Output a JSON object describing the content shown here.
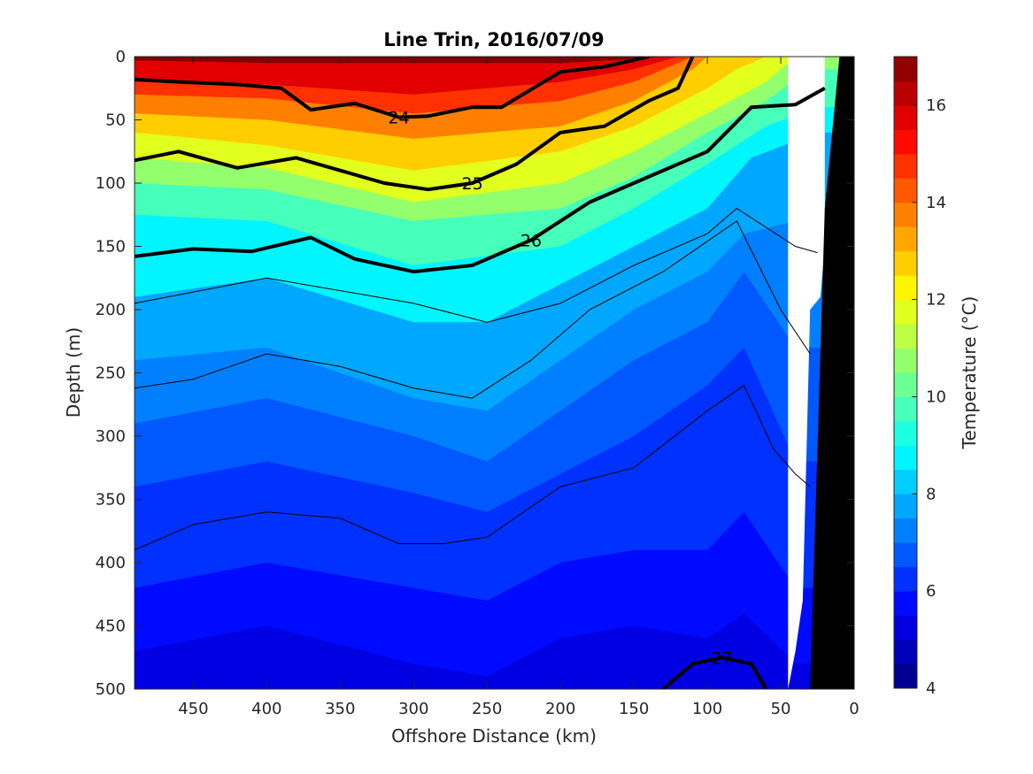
{
  "chart_data": {
    "type": "heatmap",
    "title": "Line Trin, 2016/07/09",
    "xlabel": "Offshore Distance (km)",
    "ylabel": "Depth (m)",
    "colorbar_label": "Temperature (°C)",
    "xlim": [
      490,
      0
    ],
    "ylim": [
      0,
      500
    ],
    "x_reversed": true,
    "y_reversed": true,
    "clim": [
      4,
      17
    ],
    "x_ticks": [
      "450",
      "400",
      "350",
      "300",
      "250",
      "200",
      "150",
      "100",
      "50",
      "0"
    ],
    "y_ticks": [
      "0",
      "50",
      "100",
      "150",
      "200",
      "250",
      "300",
      "350",
      "400",
      "450",
      "500"
    ],
    "colorbar_ticks": [
      "4",
      "6",
      "8",
      "10",
      "12",
      "14",
      "16"
    ],
    "colormap": "jet",
    "colors": {
      "contour": "#000000",
      "bathymetry": "#000000",
      "no_data": "#ffffff"
    },
    "temperature_isotherms": [
      {
        "t": 16,
        "x": [
          490,
          400,
          300,
          200,
          150,
          130
        ],
        "depth": [
          3,
          5,
          5,
          5,
          2,
          0
        ]
      },
      {
        "t": 15,
        "x": [
          490,
          400,
          300,
          200,
          150,
          120
        ],
        "depth": [
          20,
          22,
          30,
          20,
          10,
          0
        ]
      },
      {
        "t": 14,
        "x": [
          490,
          400,
          300,
          200,
          150,
          120,
          110
        ],
        "depth": [
          30,
          33,
          45,
          35,
          20,
          5,
          0
        ]
      },
      {
        "t": 13,
        "x": [
          490,
          400,
          300,
          200,
          150,
          110,
          100
        ],
        "depth": [
          45,
          50,
          65,
          55,
          35,
          10,
          0
        ]
      },
      {
        "t": 12,
        "x": [
          490,
          400,
          300,
          200,
          150,
          100,
          80,
          60
        ],
        "depth": [
          60,
          70,
          90,
          75,
          55,
          25,
          10,
          0
        ]
      },
      {
        "t": 11,
        "x": [
          490,
          400,
          300,
          200,
          150,
          100,
          60,
          40
        ],
        "depth": [
          80,
          88,
          115,
          100,
          75,
          45,
          20,
          0
        ]
      },
      {
        "t": 10,
        "x": [
          490,
          400,
          300,
          200,
          150,
          100,
          60,
          30
        ],
        "depth": [
          100,
          105,
          130,
          120,
          95,
          60,
          35,
          10
        ]
      },
      {
        "t": 9,
        "x": [
          490,
          400,
          300,
          200,
          150,
          100,
          60,
          25
        ],
        "depth": [
          125,
          130,
          165,
          150,
          120,
          85,
          55,
          40
        ]
      },
      {
        "t": 8,
        "x": [
          490,
          400,
          300,
          250,
          200,
          150,
          100,
          70,
          25
        ],
        "depth": [
          190,
          175,
          210,
          210,
          180,
          150,
          120,
          80,
          60
        ]
      },
      {
        "t": 7.5,
        "x": [
          490,
          400,
          300,
          250,
          200,
          150,
          100,
          75,
          40
        ],
        "depth": [
          240,
          230,
          270,
          280,
          240,
          200,
          170,
          140,
          130
        ]
      },
      {
        "t": 7,
        "x": [
          490,
          400,
          300,
          250,
          200,
          150,
          100,
          75,
          40
        ],
        "depth": [
          290,
          270,
          300,
          320,
          280,
          240,
          210,
          170,
          230
        ]
      },
      {
        "t": 6.5,
        "x": [
          490,
          400,
          300,
          250,
          200,
          150,
          100,
          75,
          40
        ],
        "depth": [
          340,
          320,
          345,
          360,
          330,
          300,
          260,
          230,
          320
        ]
      },
      {
        "t": 6,
        "x": [
          490,
          400,
          300,
          250,
          200,
          150,
          100,
          75,
          40
        ],
        "depth": [
          420,
          400,
          420,
          430,
          400,
          390,
          390,
          360,
          420
        ]
      },
      {
        "t": 5.5,
        "x": [
          490,
          400,
          300,
          250,
          200,
          150,
          100,
          75,
          40
        ],
        "depth": [
          470,
          450,
          480,
          490,
          460,
          450,
          460,
          440,
          480
        ]
      }
    ],
    "density_contours": {
      "labeled_levels": [
        {
          "level": "24",
          "x": [
            490,
            460,
            420,
            390,
            370,
            340,
            310,
            290,
            260,
            240,
            200,
            170,
            140
          ],
          "depth": [
            18,
            20,
            22,
            25,
            42,
            37,
            48,
            47,
            40,
            40,
            12,
            8,
            0
          ]
        },
        {
          "level": "25",
          "x": [
            490,
            460,
            420,
            380,
            350,
            320,
            290,
            260,
            230,
            200,
            170,
            140,
            120,
            110
          ],
          "depth": [
            82,
            75,
            88,
            80,
            90,
            100,
            105,
            100,
            85,
            60,
            55,
            35,
            25,
            0
          ]
        },
        {
          "level": "26",
          "x": [
            490,
            450,
            410,
            370,
            340,
            300,
            260,
            220,
            180,
            150,
            100,
            70,
            40,
            20
          ],
          "depth": [
            158,
            152,
            154,
            143,
            160,
            170,
            165,
            145,
            115,
            100,
            75,
            40,
            38,
            25
          ]
        },
        {
          "level": "27",
          "x": [
            130,
            110,
            90,
            70,
            60
          ],
          "depth": [
            500,
            480,
            475,
            480,
            500
          ]
        }
      ],
      "unlabeled_levels": [
        {
          "x": [
            490,
            400,
            300,
            250,
            200,
            150,
            100,
            80,
            40,
            25
          ],
          "depth": [
            195,
            175,
            195,
            210,
            195,
            165,
            140,
            120,
            150,
            155
          ]
        },
        {
          "x": [
            490,
            450,
            400,
            350,
            300,
            260,
            220,
            180,
            130,
            80,
            50,
            30
          ],
          "depth": [
            262,
            255,
            235,
            245,
            262,
            270,
            240,
            200,
            170,
            130,
            200,
            235
          ]
        },
        {
          "x": [
            490,
            450,
            400,
            350,
            310,
            280,
            250,
            200,
            150,
            100,
            75,
            55,
            40,
            30
          ],
          "depth": [
            390,
            370,
            360,
            365,
            385,
            385,
            380,
            340,
            325,
            280,
            260,
            310,
            330,
            340
          ]
        }
      ]
    },
    "bathymetry": {
      "x": [
        30,
        20,
        10,
        0,
        0,
        30
      ],
      "depth": [
        500,
        120,
        0,
        0,
        500,
        500
      ]
    },
    "no_data_region": {
      "x": [
        45,
        40,
        35,
        30,
        23,
        20,
        20,
        45
      ],
      "depth": [
        500,
        470,
        430,
        200,
        190,
        150,
        0,
        0
      ]
    }
  }
}
